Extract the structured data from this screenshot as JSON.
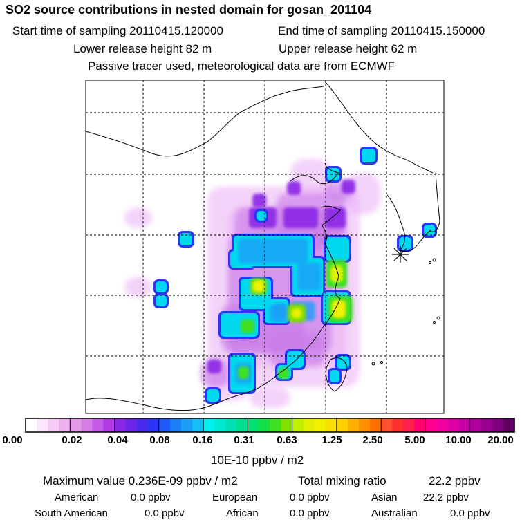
{
  "header": {
    "title": "SO2 source contributions in nested domain for gosan_201104",
    "start_label": "Start time of sampling 20110415.120000",
    "end_label": "End time of sampling 20110415.150000",
    "lower_label": "Lower release height   82 m",
    "upper_label": "Upper release height   62 m",
    "tracer_label": "Passive tracer used, meteorological data are from ECMWF"
  },
  "chart_data": {
    "type": "heatmap",
    "title": "SO2 source contributions in nested domain for gosan_201104",
    "colorbar_unit": "10E-10 ppbv / m2",
    "colorbar_ticks": [
      "0.00",
      "0.02",
      "0.04",
      "0.08",
      "0.16",
      "0.31",
      "0.63",
      "1.25",
      "2.50",
      "5.00",
      "10.00",
      "20.00"
    ],
    "colorbar_colors": [
      [
        "#ffffff",
        "#fbe6fb",
        "#f6cbf6",
        "#efb0ef"
      ],
      [
        "#e39be9",
        "#d57ee6",
        "#c45be6",
        "#b03be6"
      ],
      [
        "#8a28e6",
        "#6a24ea",
        "#4b2af0",
        "#2b35f6"
      ],
      [
        "#1e5af8",
        "#1c7ef8",
        "#1c9ef8",
        "#17bef8"
      ],
      [
        "#00f0f0",
        "#00e8d0",
        "#00e0b0",
        "#00e090"
      ],
      [
        "#00e070",
        "#10e040",
        "#40e020",
        "#80e000"
      ],
      [
        "#c0f000",
        "#e0f000",
        "#f0f000",
        "#f8e000"
      ],
      [
        "#ffd000",
        "#ffb000",
        "#ff9000",
        "#ff7000"
      ],
      [
        "#ff5030",
        "#ff3030",
        "#ff2050",
        "#ff0070"
      ],
      [
        "#ff0090",
        "#f000a0",
        "#e000a8",
        "#c800a8"
      ],
      [
        "#b000a0",
        "#980090",
        "#800080",
        "#600060"
      ]
    ],
    "receptor": "gosan",
    "stats": {
      "max_label": "Maximum value  0.236E-09 ppbv / m2",
      "total_label": "Total mixing ratio",
      "total_value": "22.2 ppbv"
    },
    "regions": [
      {
        "name": "American",
        "value": "0.0 ppbv"
      },
      {
        "name": "European",
        "value": "0.0 ppbv"
      },
      {
        "name": "Asian",
        "value": "22.2 ppbv"
      },
      {
        "name": "South American",
        "value": "0.0 ppbv"
      },
      {
        "name": "African",
        "value": "0.0 ppbv"
      },
      {
        "name": "Australian",
        "value": "0.0 ppbv"
      }
    ]
  }
}
